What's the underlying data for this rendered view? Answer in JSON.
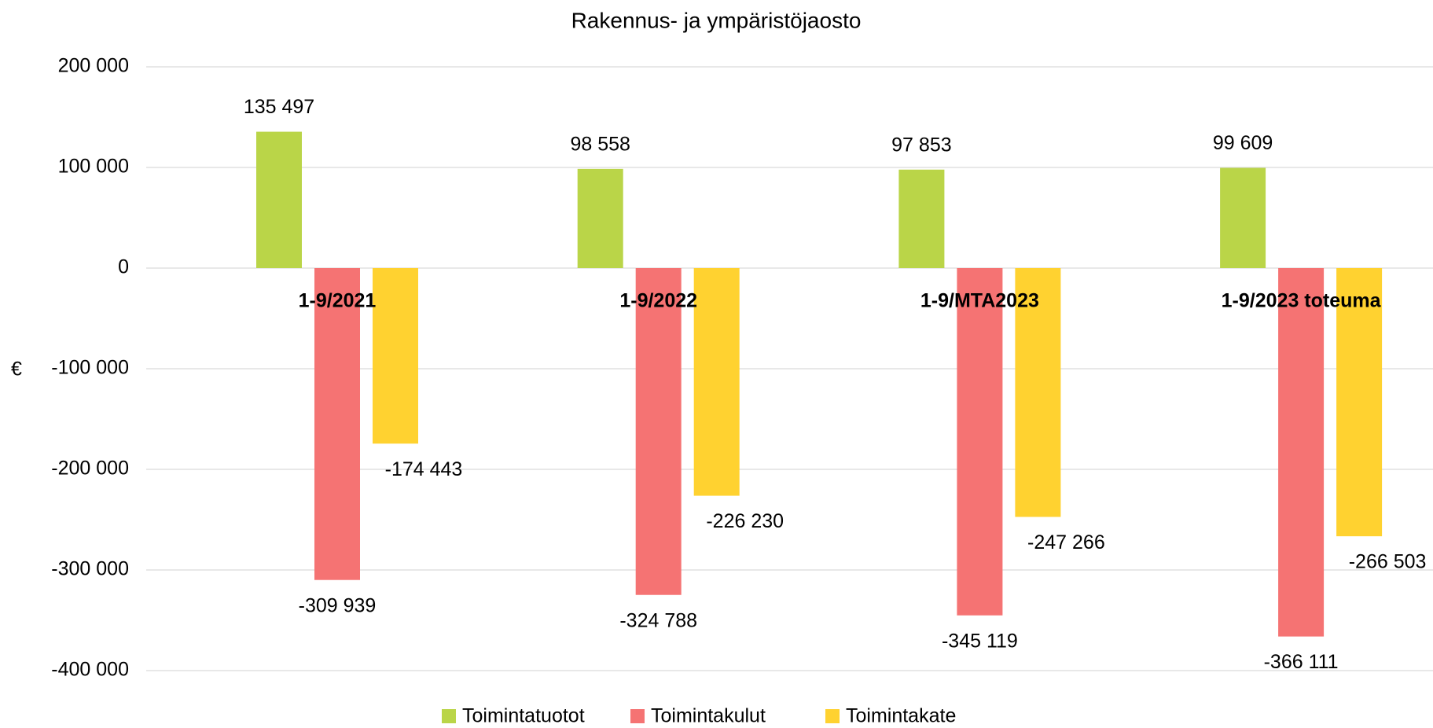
{
  "chart_data": {
    "type": "bar",
    "title": "Rakennus- ja ympäristöjaosto",
    "y_label": "€",
    "categories": [
      "1-9/2021",
      "1-9/2022",
      "1-9/MTA2023",
      "1-9/2023 toteuma"
    ],
    "series": [
      {
        "name": "Toimintatuotot",
        "color": "#bad548",
        "values": [
          135497,
          98558,
          97853,
          99609
        ],
        "value_labels": [
          "135 497",
          "98 558",
          "97 853",
          "99 609"
        ]
      },
      {
        "name": "Toimintakulut",
        "color": "#f57373",
        "values": [
          -309939,
          -324788,
          -345119,
          -366111
        ],
        "value_labels": [
          "-309 939",
          "-324 788",
          "-345 119",
          "-366 111"
        ]
      },
      {
        "name": "Toimintakate",
        "color": "#ffd230",
        "values": [
          -174443,
          -226230,
          -247266,
          -266503
        ],
        "value_labels": [
          "-174 443",
          "-226 230",
          "-247 266",
          "-266 503"
        ]
      }
    ],
    "ylim": [
      -400000,
      200000
    ],
    "yticks": [
      {
        "value": -400000,
        "label": "-400 000"
      },
      {
        "value": -300000,
        "label": "-300 000"
      },
      {
        "value": -200000,
        "label": "-200 000"
      },
      {
        "value": -100000,
        "label": "-100 000"
      },
      0,
      {
        "value": 100000,
        "label": "100 000"
      },
      {
        "value": 200000,
        "label": "200 000"
      }
    ],
    "grid": true,
    "legend": "bottom"
  }
}
